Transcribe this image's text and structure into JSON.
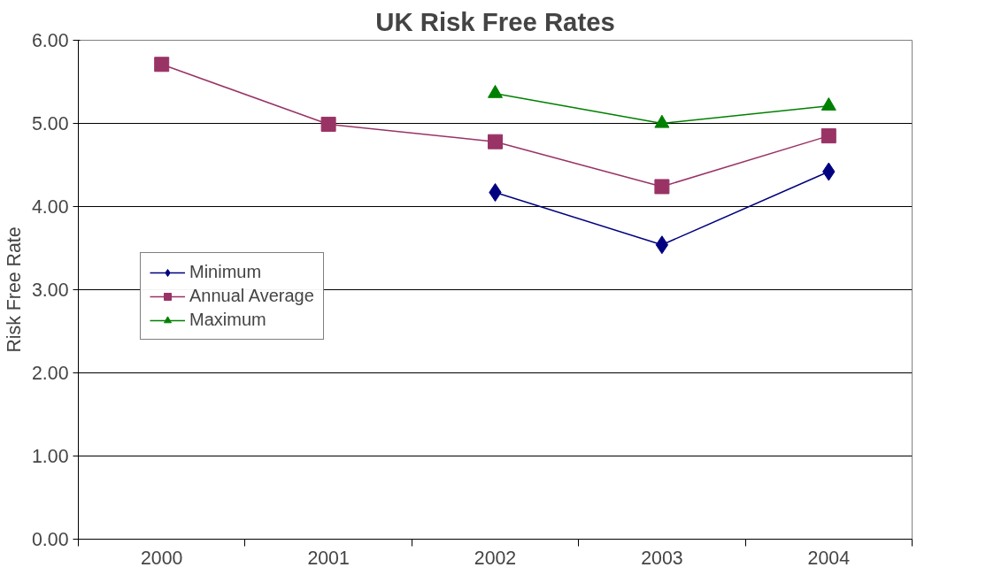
{
  "chart_data": {
    "type": "line",
    "title": "UK Risk Free Rates",
    "ylabel": "Risk Free Rate",
    "categories": [
      "2000",
      "2001",
      "2002",
      "2003",
      "2004"
    ],
    "series": [
      {
        "name": "Minimum",
        "color": "#000080",
        "marker": "diamond",
        "values": [
          null,
          null,
          4.17,
          3.54,
          4.42
        ]
      },
      {
        "name": "Annual Average",
        "color": "#993366",
        "marker": "square",
        "values": [
          5.71,
          4.99,
          4.78,
          4.24,
          4.85
        ]
      },
      {
        "name": "Maximum",
        "color": "#008000",
        "marker": "triangle",
        "values": [
          null,
          null,
          5.36,
          5.0,
          5.21
        ]
      }
    ],
    "ylim": [
      0,
      6
    ],
    "yticks": [
      {
        "value": 0,
        "label": "0.00"
      },
      {
        "value": 1,
        "label": "1.00"
      },
      {
        "value": 2,
        "label": "2.00"
      },
      {
        "value": 3,
        "label": "3.00"
      },
      {
        "value": 4,
        "label": "4.00"
      },
      {
        "value": 5,
        "label": "5.00"
      },
      {
        "value": 6,
        "label": "6.00"
      }
    ],
    "grid": "y",
    "legend": "left",
    "line_style": "solid"
  }
}
